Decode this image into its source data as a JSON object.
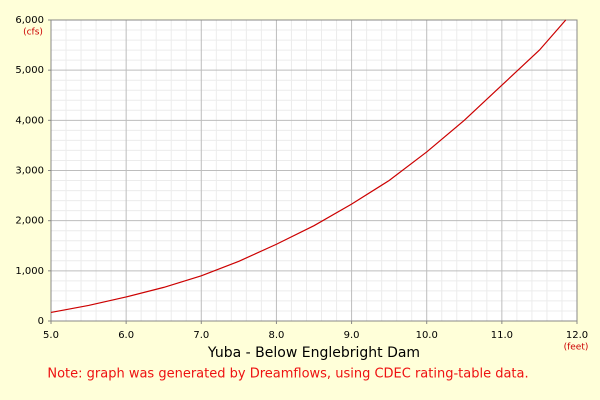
{
  "chart_data": {
    "type": "line",
    "title": "Yuba - Below Englebright Dam",
    "x_label": "(feet)",
    "y_label": "(cfs)",
    "note": "Note: graph was generated by Dreamflows, using CDEC rating-table data.",
    "x": [
      5.0,
      5.5,
      6.0,
      6.5,
      7.0,
      7.5,
      8.0,
      8.5,
      9.0,
      9.5,
      10.0,
      10.5,
      11.0,
      11.5,
      11.85
    ],
    "series": [
      {
        "name": "Yuba - Below Englebright Dam",
        "color": "#cc0000",
        "values": [
          170,
          310,
          480,
          670,
          900,
          1190,
          1530,
          1900,
          2330,
          2800,
          3370,
          4000,
          4700,
          5400,
          6000
        ]
      }
    ],
    "xlim": [
      5,
      12
    ],
    "xticks": [
      {
        "value": 5,
        "label": "5.0"
      },
      {
        "value": 6,
        "label": "6.0"
      },
      {
        "value": 7,
        "label": "7.0"
      },
      {
        "value": 8,
        "label": "8.0"
      },
      {
        "value": 9,
        "label": "9.0"
      },
      {
        "value": 10,
        "label": "10.0"
      },
      {
        "value": 11,
        "label": "11.0"
      },
      {
        "value": 12,
        "label": "12.0"
      }
    ],
    "ylim": [
      0,
      6000
    ],
    "yticks": [
      0,
      {
        "value": 1000,
        "label": "1,000"
      },
      {
        "value": 2000,
        "label": "2,000"
      },
      {
        "value": 3000,
        "label": "3,000"
      },
      {
        "value": 4000,
        "label": "4,000"
      },
      {
        "value": 5000,
        "label": "5,000"
      },
      {
        "value": 6000,
        "label": "6,000"
      }
    ],
    "grid": true,
    "minor_grid": true,
    "axis_label_color": "#cc0000",
    "note_color": "#ee1111"
  }
}
